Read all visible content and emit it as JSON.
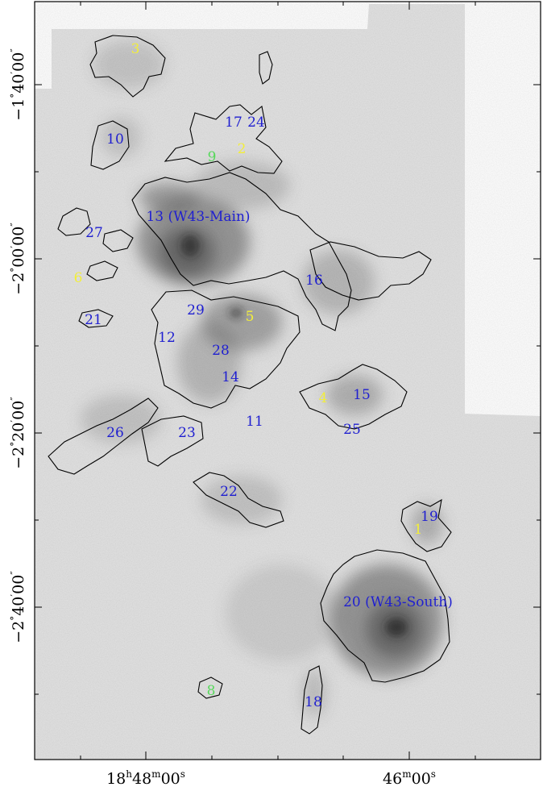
{
  "axes": {
    "dec_labels": [
      {
        "deg": "−1",
        "deg_sup": "°",
        "min": "40",
        "min_sup": "′",
        "sec": "00",
        "sec_sup": "″"
      },
      {
        "deg": "−2",
        "deg_sup": "°",
        "min": "00",
        "min_sup": "′",
        "sec": "00",
        "sec_sup": "″"
      },
      {
        "deg": "−2",
        "deg_sup": "°",
        "min": "20",
        "min_sup": "′",
        "sec": "00",
        "sec_sup": "″"
      },
      {
        "deg": "−2",
        "deg_sup": "°",
        "min": "40",
        "min_sup": "′",
        "sec": "00",
        "sec_sup": "″"
      }
    ],
    "ra_labels": [
      {
        "h": "18",
        "h_sup": "h",
        "m": "48",
        "m_sup": "m",
        "s": "00",
        "s_sup": "s"
      },
      {
        "m": "46",
        "m_sup": "m",
        "s": "00",
        "s_sup": "s"
      }
    ]
  },
  "labels": [
    {
      "text": "3",
      "color": "yellow"
    },
    {
      "text": "10",
      "color": "blue"
    },
    {
      "text": "17",
      "color": "blue"
    },
    {
      "text": "24",
      "color": "blue"
    },
    {
      "text": "2",
      "color": "yellow"
    },
    {
      "text": "9",
      "color": "green"
    },
    {
      "text": "13 (W43-Main)",
      "color": "blue"
    },
    {
      "text": "27",
      "color": "blue"
    },
    {
      "text": "6",
      "color": "yellow"
    },
    {
      "text": "16",
      "color": "blue"
    },
    {
      "text": "21",
      "color": "blue"
    },
    {
      "text": "29",
      "color": "blue"
    },
    {
      "text": "5",
      "color": "yellow"
    },
    {
      "text": "12",
      "color": "blue"
    },
    {
      "text": "28",
      "color": "blue"
    },
    {
      "text": "14",
      "color": "blue"
    },
    {
      "text": "4",
      "color": "yellow"
    },
    {
      "text": "15",
      "color": "blue"
    },
    {
      "text": "11",
      "color": "blue"
    },
    {
      "text": "25",
      "color": "blue"
    },
    {
      "text": "26",
      "color": "blue"
    },
    {
      "text": "23",
      "color": "blue"
    },
    {
      "text": "22",
      "color": "blue"
    },
    {
      "text": "19",
      "color": "blue"
    },
    {
      "text": "1",
      "color": "yellow"
    },
    {
      "text": "20 (W43-South)",
      "color": "blue"
    },
    {
      "text": "8",
      "color": "green"
    },
    {
      "text": "18",
      "color": "blue"
    }
  ],
  "colors": {
    "blue": "#1f1fd0",
    "yellow": "#f2ee3a",
    "green": "#56d85a"
  }
}
